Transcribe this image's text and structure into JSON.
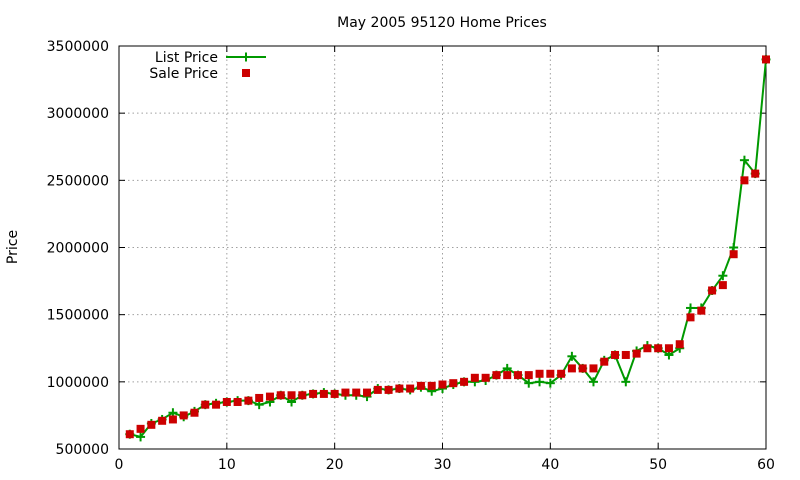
{
  "chart_data": {
    "type": "line",
    "title": "May 2005 95120 Home Prices",
    "xlabel": "",
    "ylabel": "Price",
    "xlim": [
      0,
      60
    ],
    "ylim": [
      500000,
      3500000
    ],
    "xticks": [
      0,
      10,
      20,
      30,
      40,
      50,
      60
    ],
    "yticks": [
      500000,
      1000000,
      1500000,
      2000000,
      2500000,
      3000000,
      3500000
    ],
    "grid": true,
    "legend_position": "top-left",
    "series": [
      {
        "name": "List Price",
        "style": "line-with-plus-markers",
        "color": "#009900",
        "x": [
          1,
          2,
          3,
          4,
          5,
          6,
          7,
          8,
          9,
          10,
          11,
          12,
          13,
          14,
          15,
          16,
          17,
          18,
          19,
          20,
          21,
          22,
          23,
          24,
          25,
          26,
          27,
          28,
          29,
          30,
          31,
          32,
          33,
          34,
          35,
          36,
          37,
          38,
          39,
          40,
          41,
          42,
          43,
          44,
          45,
          46,
          47,
          48,
          49,
          50,
          51,
          52,
          53,
          54,
          55,
          56,
          57,
          58,
          59,
          60
        ],
        "values": [
          610000,
          590000,
          690000,
          720000,
          770000,
          740000,
          780000,
          830000,
          840000,
          850000,
          860000,
          860000,
          830000,
          850000,
          900000,
          850000,
          900000,
          910000,
          920000,
          910000,
          900000,
          900000,
          890000,
          950000,
          940000,
          950000,
          940000,
          960000,
          930000,
          950000,
          980000,
          1000000,
          1000000,
          1010000,
          1050000,
          1100000,
          1050000,
          990000,
          1000000,
          990000,
          1050000,
          1190000,
          1100000,
          1000000,
          1160000,
          1200000,
          1000000,
          1230000,
          1270000,
          1250000,
          1200000,
          1250000,
          1550000,
          1550000,
          1680000,
          1790000,
          2000000,
          2650000,
          2550000,
          3400000
        ]
      },
      {
        "name": "Sale Price",
        "style": "square-markers",
        "color": "#cc0000",
        "x": [
          1,
          2,
          3,
          4,
          5,
          6,
          7,
          8,
          9,
          10,
          11,
          12,
          13,
          14,
          15,
          16,
          17,
          18,
          19,
          20,
          21,
          22,
          23,
          24,
          25,
          26,
          27,
          28,
          29,
          30,
          31,
          32,
          33,
          34,
          35,
          36,
          37,
          38,
          39,
          40,
          41,
          42,
          43,
          44,
          45,
          46,
          47,
          48,
          49,
          50,
          51,
          52,
          53,
          54,
          55,
          56,
          57,
          58,
          59,
          60
        ],
        "values": [
          610000,
          650000,
          680000,
          710000,
          720000,
          750000,
          770000,
          830000,
          830000,
          850000,
          850000,
          860000,
          880000,
          890000,
          900000,
          900000,
          900000,
          910000,
          910000,
          910000,
          920000,
          920000,
          920000,
          940000,
          940000,
          950000,
          950000,
          970000,
          970000,
          980000,
          990000,
          1000000,
          1030000,
          1030000,
          1050000,
          1050000,
          1050000,
          1050000,
          1060000,
          1060000,
          1060000,
          1100000,
          1100000,
          1100000,
          1150000,
          1200000,
          1200000,
          1210000,
          1250000,
          1250000,
          1250000,
          1280000,
          1480000,
          1530000,
          1680000,
          1720000,
          1950000,
          2500000,
          2550000,
          3400000
        ]
      }
    ]
  }
}
